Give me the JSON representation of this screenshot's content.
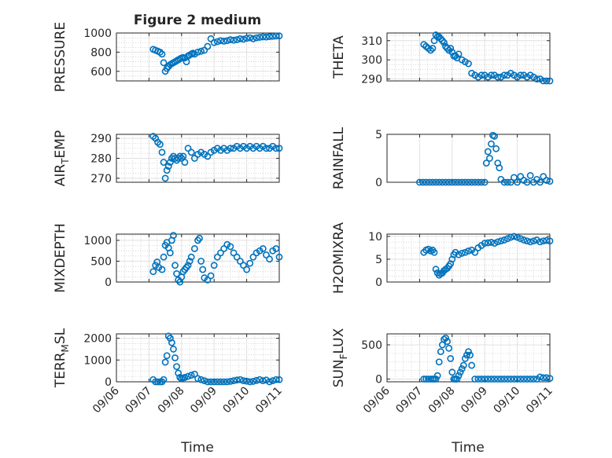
{
  "figure": {
    "title": "Figure 2 medium",
    "xlabel": "Time",
    "marker_color": "#0072BD",
    "date_ticks": [
      "09/06",
      "09/07",
      "09/08",
      "09/09",
      "09/10",
      "09/11"
    ]
  },
  "chart_data": [
    {
      "type": "scatter",
      "ylabel": "PRESSURE",
      "ylim": [
        500,
        1000
      ],
      "yticks": [
        600,
        800,
        1000
      ],
      "xlim": [
        "09/06",
        "09/11"
      ],
      "grid": true,
      "minor_grid": true,
      "x": [
        1.13,
        1.2,
        1.27,
        1.34,
        1.4,
        1.45,
        1.5,
        1.55,
        1.6,
        1.65,
        1.7,
        1.75,
        1.8,
        1.85,
        1.9,
        1.95,
        2.0,
        2.05,
        2.1,
        2.15,
        2.2,
        2.25,
        2.3,
        2.35,
        2.4,
        2.5,
        2.6,
        2.7,
        2.8,
        2.9,
        3.0,
        3.1,
        3.2,
        3.3,
        3.4,
        3.5,
        3.6,
        3.7,
        3.8,
        3.9,
        4.0,
        4.1,
        4.2,
        4.3,
        4.4,
        4.5,
        4.6,
        4.7,
        4.8,
        4.9,
        5.0
      ],
      "y": [
        830,
        820,
        810,
        800,
        780,
        690,
        600,
        630,
        650,
        670,
        680,
        690,
        700,
        710,
        720,
        730,
        740,
        745,
        740,
        700,
        760,
        770,
        780,
        790,
        780,
        800,
        810,
        820,
        860,
        940,
        900,
        910,
        920,
        915,
        920,
        930,
        925,
        930,
        940,
        935,
        945,
        950,
        940,
        950,
        955,
        960,
        958,
        962,
        965,
        968,
        970
      ]
    },
    {
      "type": "scatter",
      "ylabel": "THETA",
      "ylim": [
        289,
        314
      ],
      "yticks": [
        290,
        300,
        310
      ],
      "xlim": [
        "09/06",
        "09/11"
      ],
      "grid": true,
      "minor_grid": true,
      "x": [
        1.13,
        1.2,
        1.27,
        1.34,
        1.4,
        1.45,
        1.5,
        1.55,
        1.6,
        1.65,
        1.7,
        1.75,
        1.8,
        1.85,
        1.9,
        1.95,
        2.0,
        2.05,
        2.1,
        2.15,
        2.2,
        2.3,
        2.4,
        2.5,
        2.6,
        2.7,
        2.8,
        2.9,
        3.0,
        3.1,
        3.2,
        3.3,
        3.4,
        3.5,
        3.6,
        3.7,
        3.8,
        3.9,
        4.0,
        4.1,
        4.2,
        4.3,
        4.4,
        4.5,
        4.6,
        4.7,
        4.8,
        4.9,
        5.0
      ],
      "y": [
        308,
        307,
        306,
        305,
        306,
        310,
        313,
        312,
        312,
        311,
        310,
        309,
        307,
        306,
        305,
        306,
        304,
        302,
        302,
        301,
        303,
        300,
        299,
        298,
        293,
        292,
        291,
        292,
        292,
        291,
        292,
        292,
        291,
        291,
        292,
        292,
        293,
        292,
        291,
        292,
        292,
        291,
        292,
        291,
        290,
        290,
        289,
        289,
        289
      ]
    },
    {
      "type": "scatter",
      "ylabel": "AIR_TEMP",
      "ylim": [
        268,
        292
      ],
      "yticks": [
        270,
        280,
        290
      ],
      "xlim": [
        "09/06",
        "09/11"
      ],
      "grid": true,
      "minor_grid": true,
      "x": [
        1.13,
        1.2,
        1.27,
        1.34,
        1.4,
        1.45,
        1.5,
        1.55,
        1.6,
        1.65,
        1.7,
        1.75,
        1.8,
        1.85,
        1.9,
        1.95,
        2.0,
        2.05,
        2.1,
        2.2,
        2.3,
        2.4,
        2.5,
        2.6,
        2.7,
        2.8,
        2.9,
        3.0,
        3.1,
        3.2,
        3.3,
        3.4,
        3.5,
        3.6,
        3.7,
        3.8,
        3.9,
        4.0,
        4.1,
        4.2,
        4.3,
        4.4,
        4.5,
        4.6,
        4.7,
        4.8,
        4.9,
        5.0
      ],
      "y": [
        291,
        290,
        288,
        287,
        283,
        278,
        270,
        274,
        276,
        278,
        280,
        281,
        280,
        279,
        280,
        281,
        280,
        281,
        278,
        285,
        283,
        280,
        282,
        283,
        282,
        281,
        283,
        284,
        285,
        284,
        285,
        284,
        285,
        285,
        286,
        285,
        286,
        285,
        286,
        285,
        286,
        285,
        286,
        285,
        285,
        286,
        285,
        285
      ]
    },
    {
      "type": "scatter",
      "ylabel": "RAINFALL",
      "ylim": [
        0,
        5
      ],
      "yticks": [
        0,
        5
      ],
      "xlim": [
        "09/06",
        "09/11"
      ],
      "grid": true,
      "minor_grid": false,
      "x": [
        1.0,
        1.1,
        1.2,
        1.3,
        1.4,
        1.5,
        1.6,
        1.7,
        1.8,
        1.9,
        2.0,
        2.1,
        2.2,
        2.3,
        2.4,
        2.5,
        2.6,
        2.7,
        2.8,
        2.9,
        3.0,
        3.05,
        3.1,
        3.15,
        3.2,
        3.25,
        3.3,
        3.35,
        3.4,
        3.45,
        3.5,
        3.6,
        3.7,
        3.8,
        3.9,
        4.0,
        4.1,
        4.2,
        4.3,
        4.4,
        4.5,
        4.6,
        4.7,
        4.8,
        4.9,
        5.0
      ],
      "y": [
        0,
        0,
        0,
        0,
        0,
        0,
        0,
        0,
        0,
        0,
        0,
        0,
        0,
        0,
        0,
        0,
        0,
        0,
        0,
        0,
        0,
        2.0,
        3.2,
        2.5,
        4.0,
        4.9,
        4.8,
        3.5,
        2.0,
        1.5,
        0.3,
        0,
        0,
        0,
        0.5,
        0,
        0.6,
        0.2,
        0,
        0.7,
        0,
        0.3,
        0,
        0.6,
        0.2,
        0.1
      ]
    },
    {
      "type": "scatter",
      "ylabel": "MIXDEPTH",
      "ylim": [
        0,
        1150
      ],
      "yticks": [
        0,
        500,
        1000
      ],
      "xlim": [
        "09/06",
        "09/11"
      ],
      "grid": true,
      "minor_grid": true,
      "x": [
        1.13,
        1.2,
        1.25,
        1.3,
        1.4,
        1.45,
        1.5,
        1.55,
        1.6,
        1.65,
        1.7,
        1.75,
        1.8,
        1.85,
        1.9,
        1.95,
        2.0,
        2.05,
        2.1,
        2.15,
        2.2,
        2.25,
        2.3,
        2.4,
        2.5,
        2.55,
        2.6,
        2.65,
        2.7,
        2.8,
        2.9,
        3.0,
        3.1,
        3.2,
        3.3,
        3.4,
        3.5,
        3.6,
        3.7,
        3.8,
        3.9,
        4.0,
        4.1,
        4.2,
        4.3,
        4.4,
        4.5,
        4.6,
        4.7,
        4.8,
        4.9,
        5.0
      ],
      "y": [
        250,
        400,
        480,
        350,
        300,
        600,
        880,
        950,
        820,
        700,
        1000,
        1120,
        400,
        200,
        50,
        0,
        120,
        250,
        300,
        350,
        400,
        500,
        600,
        800,
        1000,
        1050,
        500,
        300,
        100,
        50,
        150,
        400,
        600,
        700,
        800,
        900,
        850,
        700,
        600,
        500,
        400,
        300,
        450,
        600,
        700,
        750,
        800,
        650,
        550,
        750,
        800,
        600
      ]
    },
    {
      "type": "scatter",
      "ylabel": "H2OMIXRA",
      "ylim": [
        0,
        10.5
      ],
      "yticks": [
        0,
        5,
        10
      ],
      "xlim": [
        "09/06",
        "09/11"
      ],
      "grid": true,
      "minor_grid": true,
      "x": [
        1.13,
        1.2,
        1.27,
        1.34,
        1.4,
        1.45,
        1.5,
        1.55,
        1.6,
        1.65,
        1.7,
        1.75,
        1.8,
        1.85,
        1.9,
        1.95,
        2.0,
        2.05,
        2.1,
        2.2,
        2.3,
        2.4,
        2.5,
        2.6,
        2.7,
        2.8,
        2.9,
        3.0,
        3.1,
        3.2,
        3.3,
        3.4,
        3.5,
        3.6,
        3.7,
        3.8,
        3.9,
        4.0,
        4.1,
        4.2,
        4.3,
        4.4,
        4.5,
        4.6,
        4.7,
        4.8,
        4.9,
        5.0
      ],
      "y": [
        6.5,
        7.0,
        7.2,
        6.8,
        7.0,
        6.5,
        2.8,
        2.0,
        1.5,
        1.8,
        2.0,
        2.5,
        2.8,
        3.0,
        3.5,
        4.0,
        5.0,
        6.0,
        6.5,
        6.0,
        6.3,
        6.5,
        6.8,
        7.0,
        6.5,
        7.5,
        8.0,
        8.5,
        8.6,
        8.7,
        8.5,
        8.8,
        9.0,
        9.2,
        9.5,
        9.8,
        10.0,
        9.8,
        9.5,
        9.2,
        9.0,
        8.8,
        9.0,
        9.2,
        8.8,
        9.0,
        9.1,
        9.0
      ]
    },
    {
      "type": "scatter",
      "ylabel": "TERR_MSL",
      "ylim": [
        0,
        2200
      ],
      "yticks": [
        0,
        1000,
        2000
      ],
      "xlim": [
        "09/06",
        "09/11"
      ],
      "grid": true,
      "minor_grid": true,
      "x": [
        1.13,
        1.2,
        1.27,
        1.34,
        1.4,
        1.45,
        1.5,
        1.55,
        1.6,
        1.65,
        1.7,
        1.75,
        1.8,
        1.85,
        1.9,
        1.95,
        2.0,
        2.05,
        2.1,
        2.2,
        2.3,
        2.4,
        2.5,
        2.6,
        2.7,
        2.8,
        2.9,
        3.0,
        3.1,
        3.2,
        3.3,
        3.4,
        3.5,
        3.6,
        3.7,
        3.8,
        3.9,
        4.0,
        4.1,
        4.2,
        4.3,
        4.4,
        4.5,
        4.6,
        4.7,
        4.8,
        4.9,
        5.0
      ],
      "y": [
        100,
        0,
        0,
        0,
        0,
        100,
        900,
        1200,
        2100,
        2000,
        1800,
        1500,
        1100,
        700,
        400,
        200,
        150,
        180,
        200,
        250,
        300,
        350,
        150,
        100,
        50,
        0,
        0,
        0,
        0,
        0,
        0,
        0,
        20,
        50,
        80,
        100,
        50,
        30,
        0,
        20,
        60,
        100,
        50,
        80,
        0,
        50,
        100,
        100
      ]
    },
    {
      "type": "scatter",
      "ylabel": "SUN_FLUX",
      "ylim": [
        -40,
        660
      ],
      "yticks": [
        0,
        500
      ],
      "xlim": [
        "09/06",
        "09/11"
      ],
      "grid": true,
      "minor_grid": true,
      "x": [
        1.13,
        1.2,
        1.27,
        1.34,
        1.4,
        1.45,
        1.5,
        1.55,
        1.6,
        1.65,
        1.7,
        1.75,
        1.8,
        1.85,
        1.9,
        1.95,
        2.0,
        2.05,
        2.1,
        2.15,
        2.2,
        2.25,
        2.3,
        2.35,
        2.4,
        2.45,
        2.5,
        2.55,
        2.6,
        2.7,
        2.8,
        2.9,
        3.0,
        3.1,
        3.2,
        3.3,
        3.4,
        3.5,
        3.6,
        3.7,
        3.8,
        3.9,
        4.0,
        4.1,
        4.2,
        4.3,
        4.4,
        4.5,
        4.6,
        4.7,
        4.8,
        4.9,
        5.0
      ],
      "y": [
        0,
        0,
        0,
        0,
        0,
        0,
        0,
        50,
        250,
        400,
        500,
        580,
        600,
        550,
        450,
        300,
        100,
        0,
        0,
        0,
        50,
        100,
        150,
        200,
        300,
        350,
        400,
        350,
        200,
        0,
        0,
        0,
        0,
        0,
        0,
        0,
        0,
        0,
        0,
        0,
        0,
        0,
        0,
        0,
        0,
        0,
        0,
        0,
        0,
        30,
        20,
        20,
        10
      ]
    }
  ]
}
